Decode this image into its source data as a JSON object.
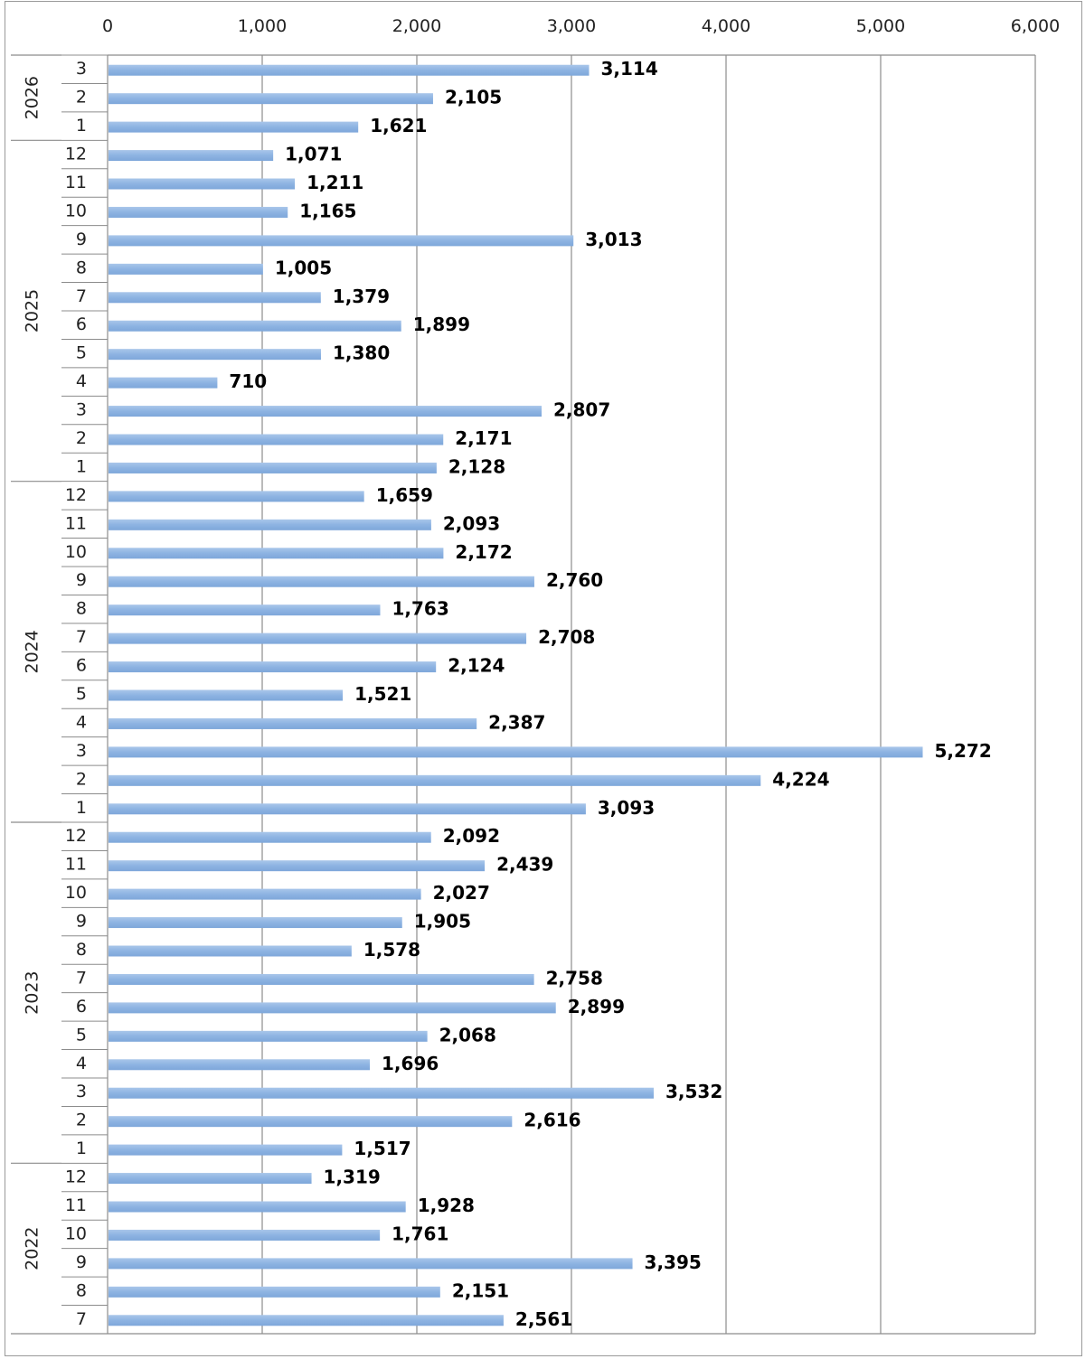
{
  "chart_data": {
    "type": "bar",
    "orientation": "horizontal",
    "title": "",
    "xlabel": "",
    "ylabel": "",
    "xlim": [
      0,
      6000
    ],
    "x_ticks": [
      0,
      1000,
      2000,
      3000,
      4000,
      5000,
      6000
    ],
    "x_tick_labels": [
      "0",
      "1,000",
      "2,000",
      "3,000",
      "4,000",
      "5,000",
      "6,000"
    ],
    "grid": "vertical",
    "bar_color": "#8db3e2",
    "groups": [
      {
        "year": "2026",
        "months": [
          "3",
          "2",
          "1"
        ],
        "values": [
          3114,
          2105,
          1621
        ],
        "value_labels": [
          "3,114",
          "2,105",
          "1,621"
        ]
      },
      {
        "year": "2025",
        "months": [
          "12",
          "11",
          "10",
          "9",
          "8",
          "7",
          "6",
          "5",
          "4",
          "3",
          "2",
          "1"
        ],
        "values": [
          1071,
          1211,
          1165,
          3013,
          1005,
          1379,
          1899,
          1380,
          710,
          2807,
          2171,
          2128
        ],
        "value_labels": [
          "1,071",
          "1,211",
          "1,165",
          "3,013",
          "1,005",
          "1,379",
          "1,899",
          "1,380",
          "710",
          "2,807",
          "2,171",
          "2,128"
        ]
      },
      {
        "year": "2024",
        "months": [
          "12",
          "11",
          "10",
          "9",
          "8",
          "7",
          "6",
          "5",
          "4",
          "3",
          "2",
          "1"
        ],
        "values": [
          1659,
          2093,
          2172,
          2760,
          1763,
          2708,
          2124,
          1521,
          2387,
          5272,
          4224,
          3093
        ],
        "value_labels": [
          "1,659",
          "2,093",
          "2,172",
          "2,760",
          "1,763",
          "2,708",
          "2,124",
          "1,521",
          "2,387",
          "5,272",
          "4,224",
          "3,093"
        ]
      },
      {
        "year": "2023",
        "months": [
          "12",
          "11",
          "10",
          "9",
          "8",
          "7",
          "6",
          "5",
          "4",
          "3",
          "2",
          "1"
        ],
        "values": [
          2092,
          2439,
          2027,
          1905,
          1578,
          2758,
          2899,
          2068,
          1696,
          3532,
          2616,
          1517
        ],
        "value_labels": [
          "2,092",
          "2,439",
          "2,027",
          "1,905",
          "1,578",
          "2,758",
          "2,899",
          "2,068",
          "1,696",
          "3,532",
          "2,616",
          "1,517"
        ]
      },
      {
        "year": "2022",
        "months": [
          "12",
          "11",
          "10",
          "9",
          "8",
          "7"
        ],
        "values": [
          1319,
          1928,
          1761,
          3395,
          2151,
          2561
        ],
        "value_labels": [
          "1,319",
          "1,928",
          "1,761",
          "3,395",
          "2,151",
          "2,561"
        ]
      }
    ]
  }
}
